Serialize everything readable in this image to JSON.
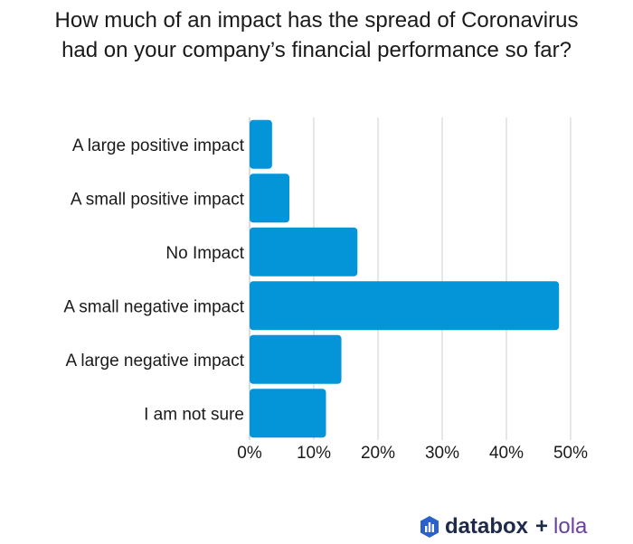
{
  "title_line1": "How much of an impact has the spread of Coronavirus",
  "title_line2": "had on your company’s financial performance so far?",
  "colors": {
    "bar": "#0494d8",
    "grid": "#cfcfcf",
    "text": "#1a1a1a",
    "brand": "#1d2a4a",
    "partner": "#6a3fa0"
  },
  "footer": {
    "brand": "databox",
    "plus": "+",
    "partner": "lola",
    "brand_icon": "databox-bars-icon"
  },
  "chart_data": {
    "type": "bar",
    "orientation": "horizontal",
    "categories": [
      "A large positive impact",
      "A small positive impact",
      "No Impact",
      "A small negative impact",
      "A large negative impact",
      "I am not sure"
    ],
    "values": [
      3.5,
      6.2,
      16.8,
      48.2,
      14.3,
      11.9
    ],
    "xlim": [
      0,
      50
    ],
    "xticks": [
      "0%",
      "10%",
      "20%",
      "30%",
      "40%",
      "50%"
    ],
    "grid": true,
    "legend": "none"
  }
}
